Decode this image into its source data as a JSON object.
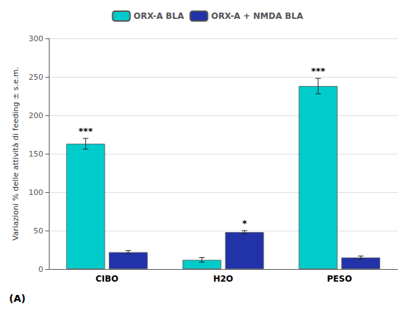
{
  "chart_data": {
    "type": "bar",
    "title": "(A)",
    "categories": [
      "CIBO",
      "H2O",
      "PESO"
    ],
    "series": [
      {
        "name": "ORX-A BLA",
        "color": "#00cccc",
        "values": [
          163,
          12,
          238
        ],
        "errors": [
          7,
          3,
          10
        ],
        "annotations": [
          "***",
          null,
          "***"
        ]
      },
      {
        "name": "ORX-A + NMDA BLA",
        "color": "#2233aa",
        "values": [
          22,
          48,
          15
        ],
        "errors": [
          2,
          2,
          2
        ],
        "annotations": [
          null,
          "*",
          null
        ]
      }
    ],
    "ylabel": "Variazioni % delle attività di feeding ± s.e.m.",
    "ylim": [
      0,
      300
    ],
    "yticks": [
      0,
      50,
      100,
      150,
      200,
      250,
      300
    ],
    "grid": true,
    "legend": "top"
  }
}
